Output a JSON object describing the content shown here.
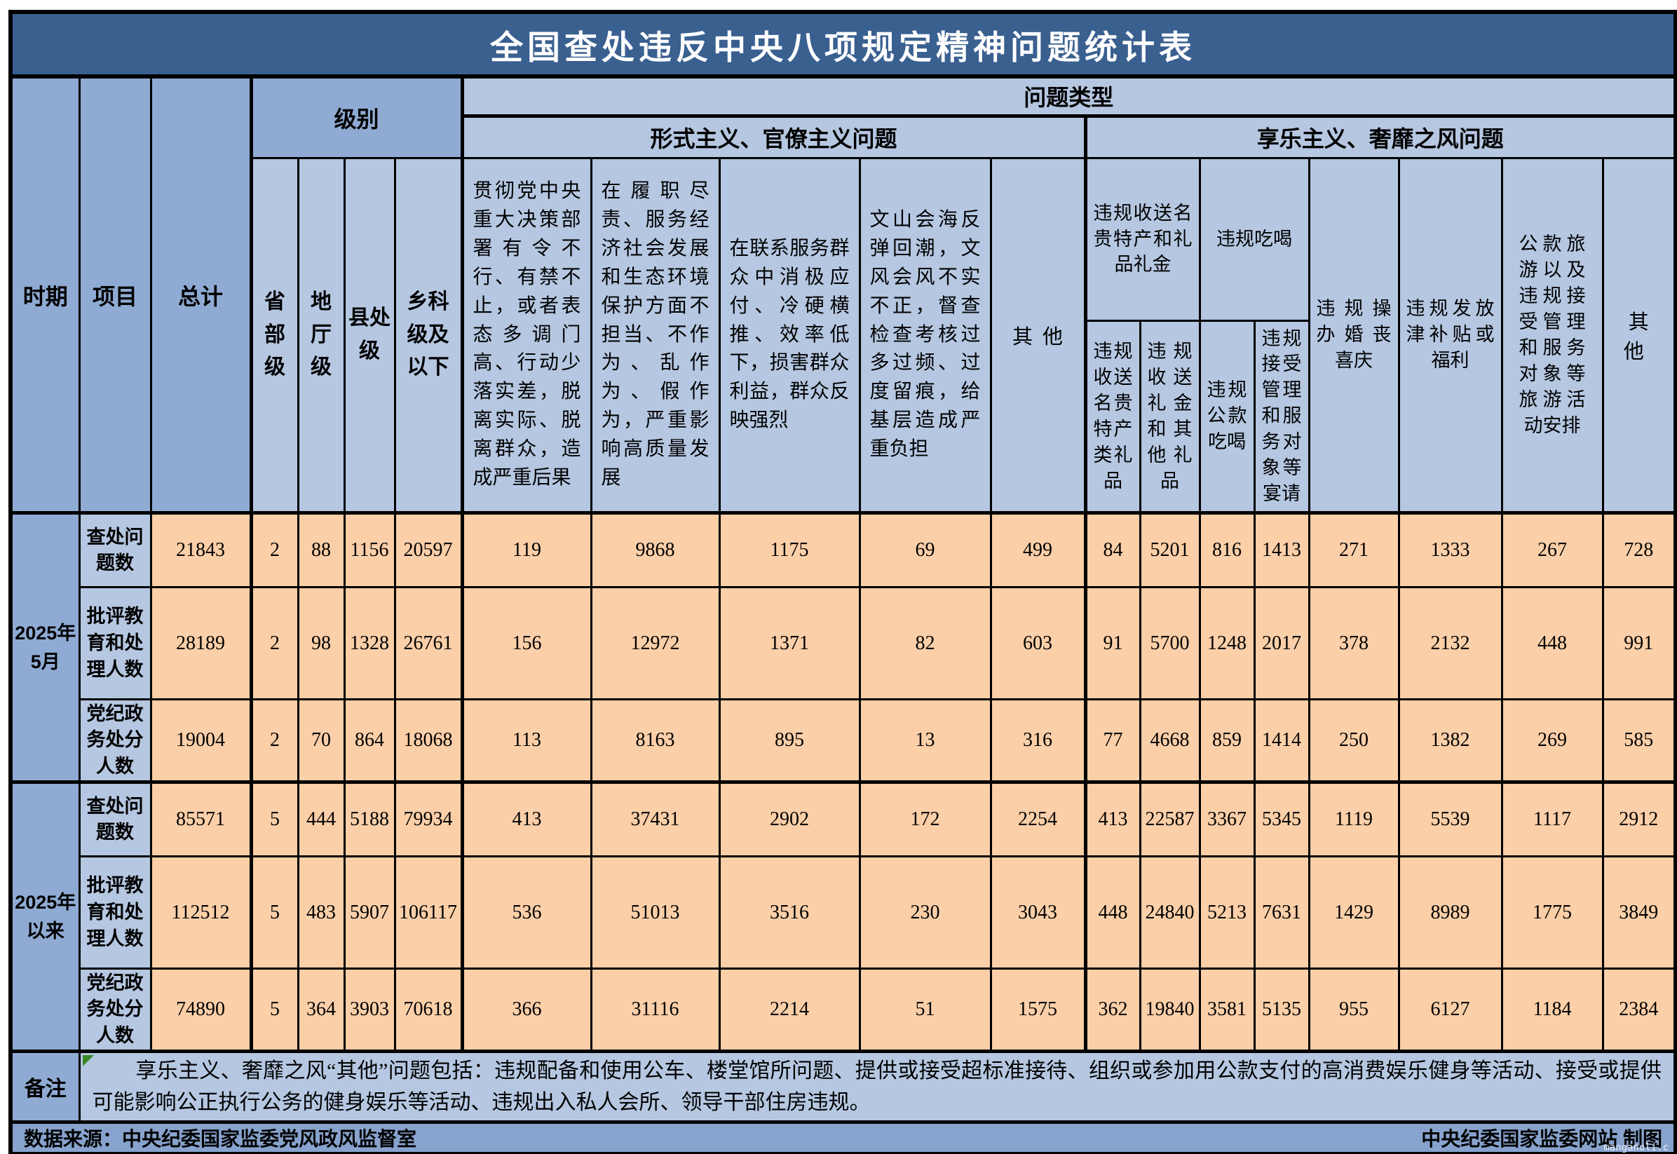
{
  "title": "全国查处违反中央八项规定精神问题统计表",
  "colors": {
    "title_bg": "#3A6090",
    "header_dark": "#8FABD3",
    "header_light": "#B5C7E1",
    "data_bg": "#FBCFA8",
    "footer_bg": "#87A3CD",
    "border": "#000000",
    "marker_green": "#3a8a28"
  },
  "chart_data": {
    "type": "table",
    "title": "全国查处违反中央八项规定精神问题统计表",
    "header": {
      "period": "时期",
      "item": "项目",
      "total": "总计",
      "level_group": "级别",
      "problem_type": "问题类型",
      "formalism_group": "形式主义、官僚主义问题",
      "hedonism_group": "享乐主义、奢靡之风问题",
      "levels": [
        "省部级",
        "地厅级",
        "县处级",
        "乡科级及以下"
      ],
      "formalism_cols": [
        "贯彻党中央重大决策部署有令不行、有禁不止，或者表态多调门高、行动少落实差，脱离实际、脱离群众，造成严重后果",
        "在履职尽责、服务经济社会发展和生态环境保护方面不担当、不作为、乱作为、假作为，严重影响高质量发展",
        "在联系服务群众中消极应付、冷硬横推、效率低下，损害群众利益，群众反映强烈",
        "文山会海反弹回潮，文风会风不实不正，督查检查考核过多过频、过度留痕，给基层造成严重负担",
        "其他"
      ],
      "gifts_group": "违规收送名贵特产和礼品礼金",
      "gifts_cols": [
        "违规收送名贵特产类礼品",
        "违规收送礼金和其他礼品"
      ],
      "eating_group": "违规吃喝",
      "eating_cols": [
        "违规公款吃喝",
        "违规接受管理和服务对象等宴请"
      ],
      "hedonism_cols": [
        "违规操办婚丧喜庆",
        "违规发放津补贴或福利",
        "公款旅游以及违规接受管理和服务对象等旅游活动安排",
        "其他"
      ]
    },
    "row_items": [
      "查处问题数",
      "批评教育和处理人数",
      "党纪政务处分人数"
    ],
    "rows": [
      {
        "period": "2025年5月",
        "item": "查处问题数",
        "values": [
          21843,
          2,
          88,
          1156,
          20597,
          119,
          9868,
          1175,
          69,
          499,
          84,
          5201,
          816,
          1413,
          271,
          1333,
          267,
          728
        ]
      },
      {
        "period": "2025年5月",
        "item": "批评教育和处理人数",
        "values": [
          28189,
          2,
          98,
          1328,
          26761,
          156,
          12972,
          1371,
          82,
          603,
          91,
          5700,
          1248,
          2017,
          378,
          2132,
          448,
          991
        ]
      },
      {
        "period": "2025年5月",
        "item": "党纪政务处分人数",
        "values": [
          19004,
          2,
          70,
          864,
          18068,
          113,
          8163,
          895,
          13,
          316,
          77,
          4668,
          859,
          1414,
          250,
          1382,
          269,
          585
        ]
      },
      {
        "period": "2025年以来",
        "item": "查处问题数",
        "values": [
          85571,
          5,
          444,
          5188,
          79934,
          413,
          37431,
          2902,
          172,
          2254,
          413,
          22587,
          3367,
          5345,
          1119,
          5539,
          1117,
          2912
        ]
      },
      {
        "period": "2025年以来",
        "item": "批评教育和处理人数",
        "values": [
          112512,
          5,
          483,
          5907,
          106117,
          536,
          51013,
          3516,
          230,
          3043,
          448,
          24840,
          5213,
          7631,
          1429,
          8989,
          1775,
          3849
        ]
      },
      {
        "period": "2025年以来",
        "item": "党纪政务处分人数",
        "values": [
          74890,
          5,
          364,
          3903,
          70618,
          366,
          31116,
          2214,
          51,
          1575,
          362,
          19840,
          3581,
          5135,
          955,
          6127,
          1184,
          2384
        ]
      }
    ]
  },
  "note": {
    "label": "备注",
    "text": "享乐主义、奢靡之风“其他”问题包括：违规配备和使用公车、楼堂馆所问题、提供或接受超标准接待、组织或参加用公款支付的高消费娱乐健身等活动、接受或提供可能影响公正执行公务的健身娱乐等活动、违规出入私人会所、领导干部住房违规。"
  },
  "footer": {
    "source": "数据来源：中央纪委国家监委党风政风监督室",
    "credit": "中央纪委国家监委网站 制图",
    "watermark": "manganoli.c"
  }
}
